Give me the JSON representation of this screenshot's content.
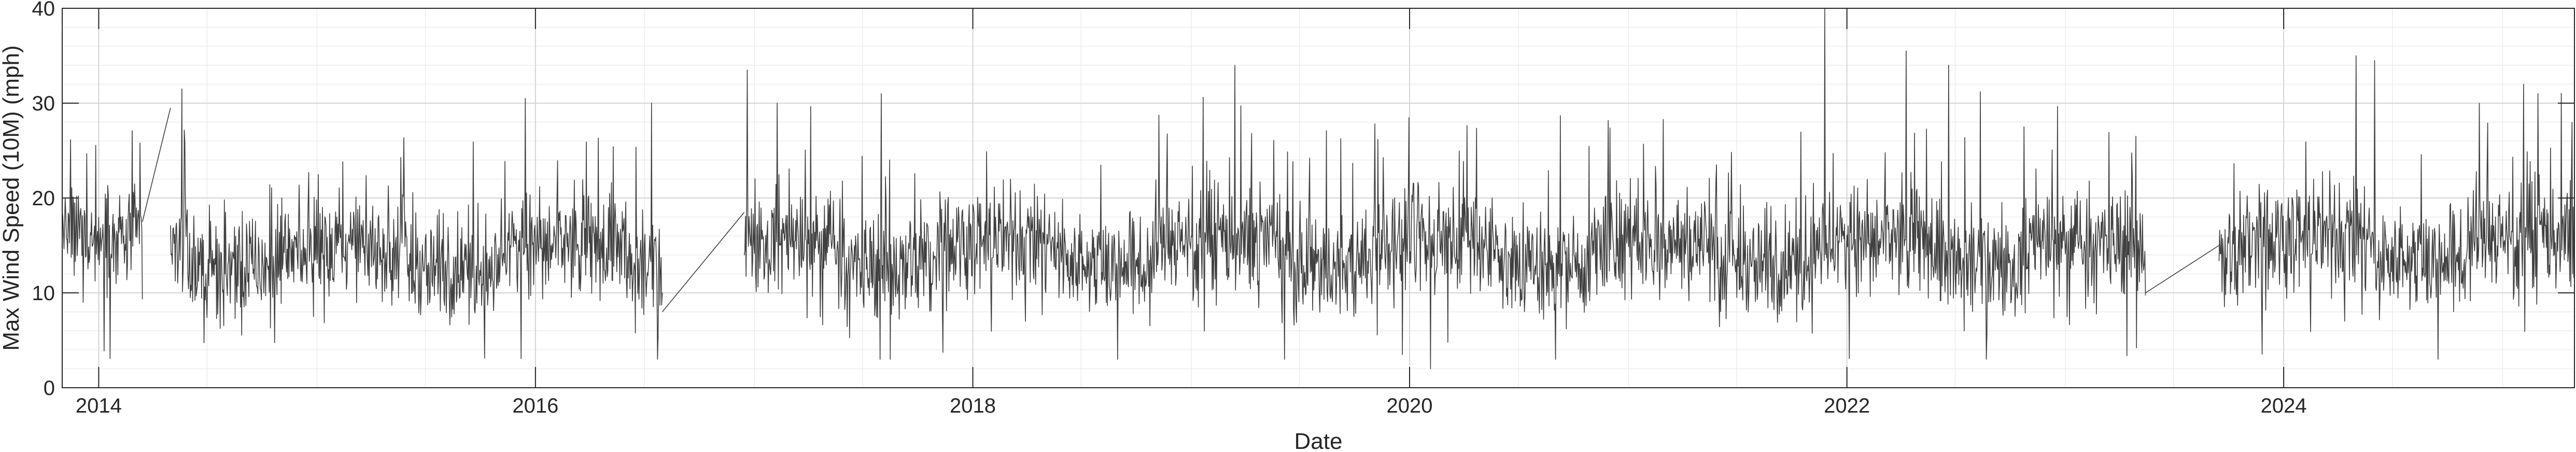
{
  "chart_data": {
    "type": "line",
    "title": "",
    "xlabel": "Date",
    "ylabel": "Max Wind Speed (10M) (mph)",
    "xlim": [
      "2013-11-01",
      "2025-05-01"
    ],
    "ylim": [
      0,
      40
    ],
    "x_ticks": [
      "2014",
      "2016",
      "2018",
      "2020",
      "2022",
      "2024"
    ],
    "y_ticks": [
      "0",
      "10",
      "20",
      "30",
      "40"
    ],
    "grid": true,
    "minor_grid": true,
    "legend": null,
    "series_color": "#404040",
    "segments": [
      {
        "start": "2013-11-01",
        "end": "2014-03-15",
        "base": 14.5,
        "amp": 5.0
      },
      {
        "start": "2014-05-01",
        "end": "2016-07-31",
        "base": 13.5,
        "amp": 5.0
      },
      {
        "start": "2016-12-15",
        "end": "2023-05-15",
        "base": 14.0,
        "amp": 5.2
      },
      {
        "start": "2023-09-15",
        "end": "2025-05-01",
        "base": 14.5,
        "amp": 5.5
      }
    ],
    "gap_lines": [
      {
        "x": [
          "2014-03-15",
          "2014-05-01"
        ],
        "y": [
          17.5,
          29.5
        ]
      },
      {
        "x": [
          "2016-07-31",
          "2016-12-15"
        ],
        "y": [
          8.0,
          18.5
        ]
      },
      {
        "x": [
          "2023-05-15",
          "2023-09-15"
        ],
        "y": [
          10.0,
          15.0
        ]
      }
    ],
    "peaks": [
      {
        "x": "2014-05-20",
        "y": 31.5
      },
      {
        "x": "2015-12-15",
        "y": 30.5
      },
      {
        "x": "2016-12-20",
        "y": 33.5
      },
      {
        "x": "2017-08-01",
        "y": 31.0
      },
      {
        "x": "2019-03-15",
        "y": 34.0
      },
      {
        "x": "2019-12-20",
        "y": 3.5
      },
      {
        "x": "2020-02-05",
        "y": 2.0
      },
      {
        "x": "2021-11-25",
        "y": 40.0
      },
      {
        "x": "2022-04-10",
        "y": 35.5
      },
      {
        "x": "2022-06-20",
        "y": 34.0
      },
      {
        "x": "2024-05-01",
        "y": 35.0
      },
      {
        "x": "2024-06-01",
        "y": 34.5
      },
      {
        "x": "2025-03-01",
        "y": 31.0
      }
    ]
  }
}
